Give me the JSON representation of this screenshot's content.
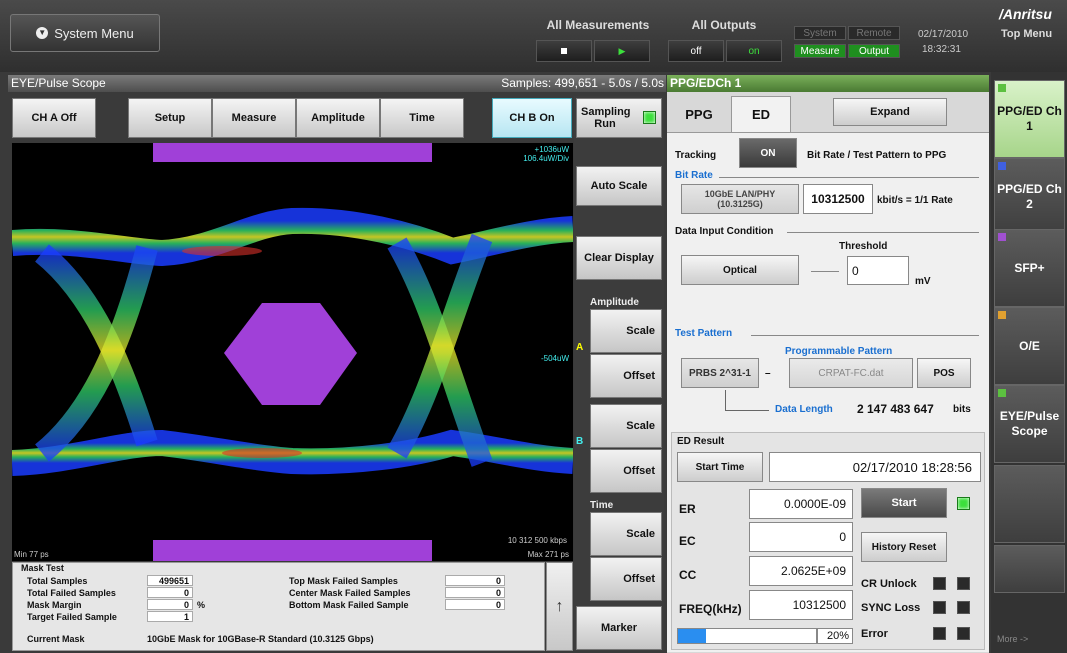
{
  "topbar": {
    "system_menu": "System Menu",
    "all_measurements": "All Measurements",
    "all_outputs": "All Outputs",
    "outputs_off": "off",
    "outputs_on": "on",
    "status_system": "System",
    "status_remote": "Remote",
    "status_measure": "Measure",
    "status_output": "Output",
    "date": "02/17/2010",
    "time": "18:32:31"
  },
  "brand": {
    "logo": "/Anritsu",
    "top_menu": "Top Menu"
  },
  "scope": {
    "title": "EYE/Pulse Scope",
    "samples": "Samples: 499,651 - 5.0s / 5.0s",
    "buttons": [
      "CH A Off",
      "Setup",
      "Measure",
      "Amplitude",
      "Time",
      "CH B On"
    ],
    "sampling": "Sampling Run",
    "plot_labels": {
      "top_right_1": "+1036uW",
      "top_right_2": "106.4uW/Div",
      "mid_right": "-504uW",
      "bitrate": "10 312 500 kbps",
      "min": "Min 77 ps",
      "max": "Max 271 ps"
    }
  },
  "side": {
    "auto_scale": "Auto Scale",
    "clear_display": "Clear Display",
    "amplitude": "Amplitude",
    "scale": "Scale",
    "offset": "Offset",
    "chan_a": "A",
    "chan_b": "B",
    "time": "Time",
    "marker": "Marker"
  },
  "mask": {
    "title": "Mask Test",
    "total_samples_lbl": "Total Samples",
    "total_samples": "499651",
    "total_failed_lbl": "Total Failed Samples",
    "total_failed": "0",
    "mask_margin_lbl": "Mask Margin",
    "mask_margin": "0",
    "mask_margin_unit": "%",
    "target_failed_lbl": "Target Failed Sample",
    "target_failed": "1",
    "top_failed_lbl": "Top Mask Failed Samples",
    "top_failed": "0",
    "center_failed_lbl": "Center Mask Failed Samples",
    "center_failed": "0",
    "bottom_failed_lbl": "Bottom Mask Failed Sample",
    "bottom_failed": "0",
    "current_mask_lbl": "Current Mask",
    "current_mask": "10GbE Mask for 10GBase-R Standard  (10.3125 Gbps)"
  },
  "ppg": {
    "header": "PPG/EDCh 1",
    "tab_ppg": "PPG",
    "tab_ed": "ED",
    "expand": "Expand",
    "tracking_lbl": "Tracking",
    "tracking_val": "ON",
    "tracking_desc": "Bit Rate / Test Pattern to PPG",
    "bitrate_lbl": "Bit Rate",
    "bitrate_preset": "10GbE LAN/PHY (10.3125G)",
    "bitrate_value": "10312500",
    "bitrate_unit": "kbit/s = 1/1  Rate",
    "data_input_lbl": "Data Input Condition",
    "threshold_lbl": "Threshold",
    "input_mode": "Optical",
    "threshold_value": "0",
    "threshold_unit": "mV",
    "test_pattern_lbl": "Test Pattern",
    "prog_pattern_lbl": "Programmable Pattern",
    "pattern": "PRBS 2^31-1",
    "pattern_file": "CRPAT-FC.dat",
    "pos": "POS",
    "data_length_lbl": "Data Length",
    "data_length": "2 147 483 647",
    "data_length_unit": "bits",
    "ed_result_lbl": "ED Result",
    "start_time_btn": "Start Time",
    "start_time": "02/17/2010 18:28:56",
    "er_lbl": "ER",
    "er": "0.0000E-09",
    "ec_lbl": "EC",
    "ec": "0",
    "cc_lbl": "CC",
    "cc": "2.0625E+09",
    "freq_lbl": "FREQ(kHz)",
    "freq": "10312500",
    "start_btn": "Start",
    "history_reset": "History Reset",
    "cr_unlock": "CR Unlock",
    "sync_loss": "SYNC Loss",
    "error": "Error",
    "progress_text": "20%",
    "progress": 0.2
  },
  "menu": {
    "items": [
      "PPG/ED Ch 1",
      "PPG/ED Ch 2",
      "SFP+",
      "O/E",
      "EYE/Pulse Scope"
    ],
    "more": "More ->"
  }
}
